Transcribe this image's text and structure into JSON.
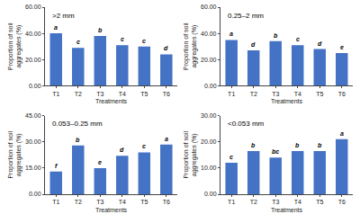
{
  "chart_data": [
    {
      "type": "bar",
      "title": ">2 mm",
      "xlabel": "Treatments",
      "ylabel": "Proportion of soil aggregates (%)",
      "categories": [
        "T1",
        "T2",
        "T3",
        "T4",
        "T5",
        "T6"
      ],
      "values": [
        40.0,
        29.0,
        38.0,
        31.0,
        30.0,
        24.0
      ],
      "annotations": [
        "a",
        "c",
        "b",
        "c",
        "c",
        "d"
      ],
      "color": "#4472C4",
      "ylim": [
        0,
        60
      ],
      "yticks": [
        {
          "value": 0,
          "label": "0.00"
        },
        {
          "value": 20,
          "label": "20.00"
        },
        {
          "value": 40,
          "label": "40.00"
        },
        {
          "value": 60,
          "label": "60.00"
        }
      ],
      "grid": false
    },
    {
      "type": "bar",
      "title": "0.25–2 mm",
      "xlabel": "Treatments",
      "ylabel": "Proportion of soil aggregates (%)",
      "categories": [
        "T1",
        "T2",
        "T3",
        "T4",
        "T5",
        "T6"
      ],
      "values": [
        35.0,
        27.0,
        34.0,
        31.0,
        28.0,
        25.0
      ],
      "annotations": [
        "a",
        "d",
        "b",
        "c",
        "d",
        "e"
      ],
      "color": "#4472C4",
      "ylim": [
        0,
        60
      ],
      "yticks": [
        {
          "value": 0,
          "label": "0.00"
        },
        {
          "value": 20,
          "label": "20.00"
        },
        {
          "value": 40,
          "label": "40.00"
        },
        {
          "value": 60,
          "label": "60.00"
        }
      ],
      "grid": false
    },
    {
      "type": "bar",
      "title": "0.053–0.25 mm",
      "xlabel": "Treatments",
      "ylabel": "Proportion of soil aggregates (%)",
      "categories": [
        "T1",
        "T2",
        "T3",
        "T4",
        "T5",
        "T6"
      ],
      "values": [
        13.0,
        28.0,
        15.0,
        22.0,
        24.0,
        28.5
      ],
      "annotations": [
        "f",
        "b",
        "e",
        "d",
        "c",
        "a"
      ],
      "color": "#4472C4",
      "ylim": [
        0,
        45
      ],
      "yticks": [
        {
          "value": 0,
          "label": "0.00"
        },
        {
          "value": 15,
          "label": "15.00"
        },
        {
          "value": 30,
          "label": "30.00"
        },
        {
          "value": 45,
          "label": "45.00"
        }
      ],
      "grid": false
    },
    {
      "type": "bar",
      "title": "<0.053 mm",
      "xlabel": "Treatments",
      "ylabel": "Proportion of soil aggregates (%)",
      "categories": [
        "T1",
        "T2",
        "T3",
        "T4",
        "T5",
        "T6"
      ],
      "values": [
        12.0,
        16.5,
        14.0,
        16.5,
        16.5,
        21.0
      ],
      "annotations": [
        "c",
        "b",
        "bc",
        "b",
        "b",
        "a"
      ],
      "color": "#4472C4",
      "ylim": [
        0,
        30
      ],
      "yticks": [
        {
          "value": 0,
          "label": "0.00"
        },
        {
          "value": 10,
          "label": "10.00"
        },
        {
          "value": 20,
          "label": "20.00"
        },
        {
          "value": 30,
          "label": "30.00"
        }
      ],
      "grid": false
    }
  ]
}
